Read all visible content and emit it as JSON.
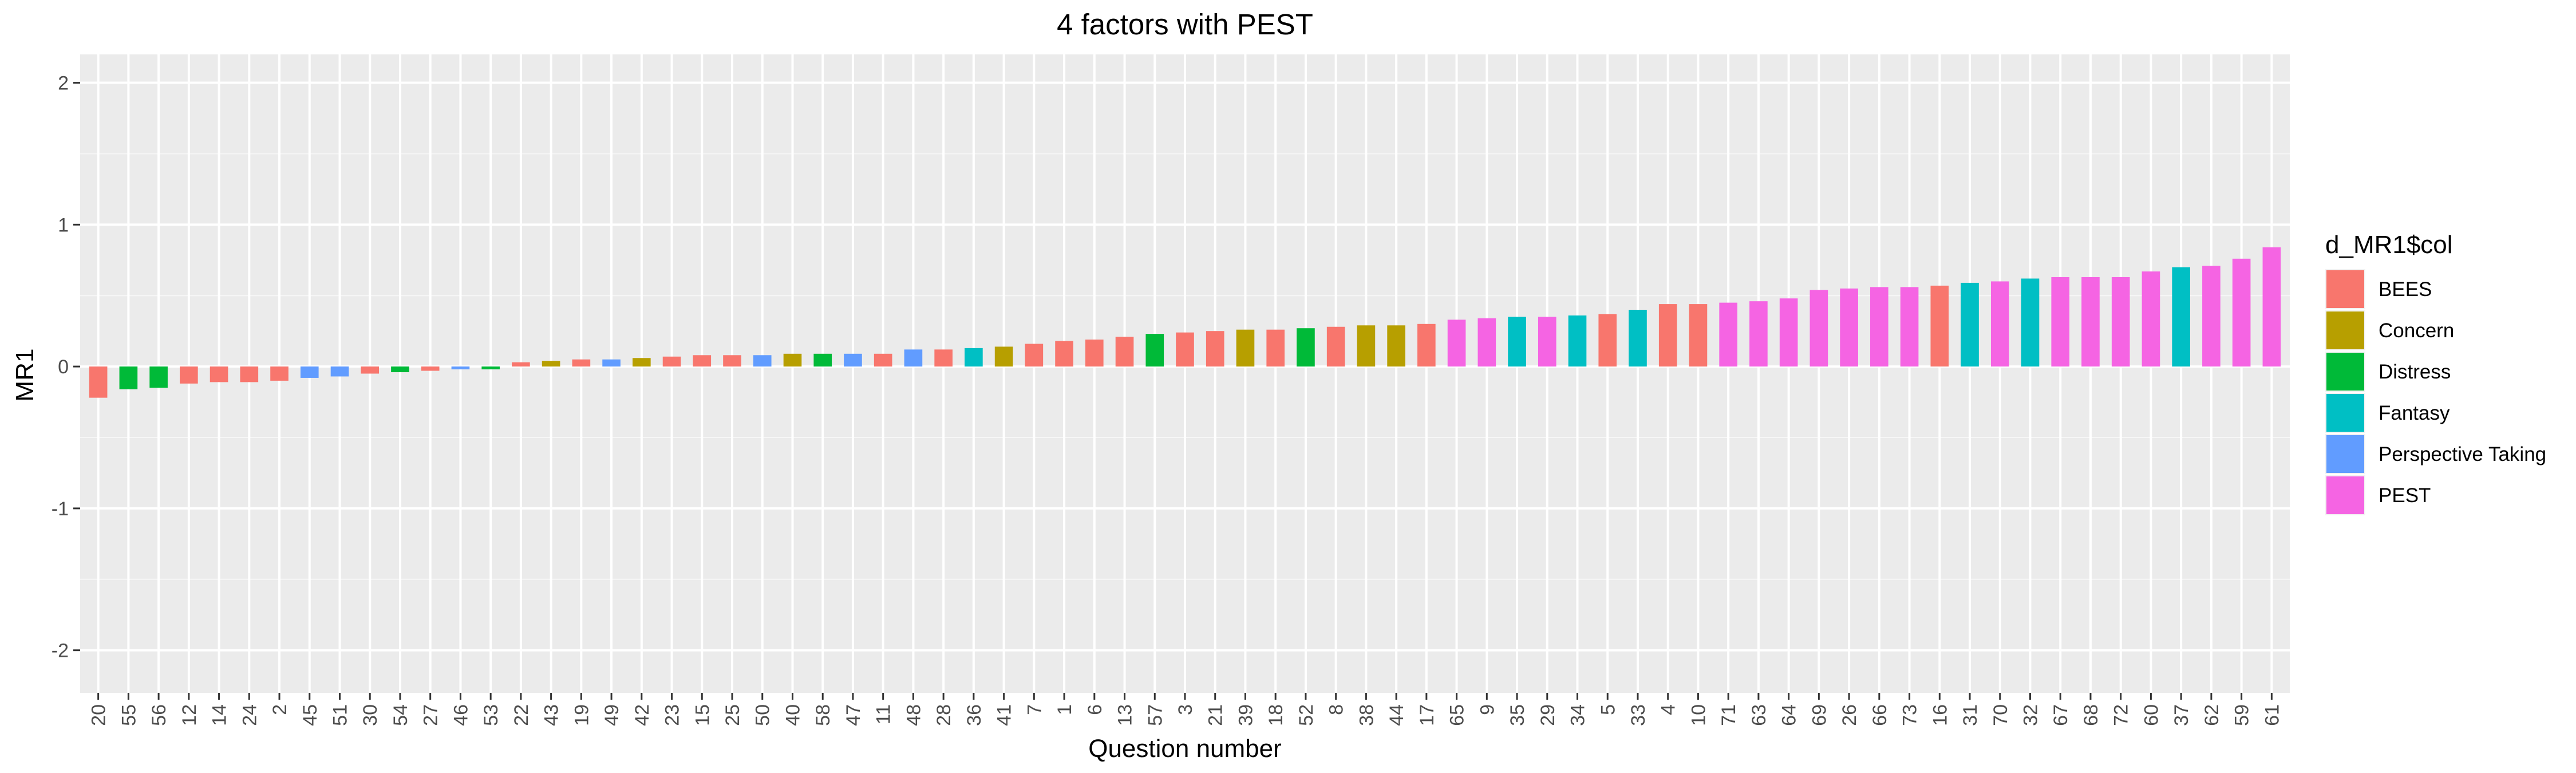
{
  "chart_data": {
    "type": "bar",
    "title": "4 factors with PEST",
    "xlabel": "Question number",
    "ylabel": "MR1",
    "ylim": [
      -2.3,
      2.2
    ],
    "yticks": [
      -2,
      -1,
      0,
      1,
      2
    ],
    "grid": true,
    "legend": {
      "title": "d_MR1$col",
      "placement": "right",
      "entries": [
        {
          "name": "BEES",
          "color": "#F8766D"
        },
        {
          "name": "Concern",
          "color": "#B79F00"
        },
        {
          "name": "Distress",
          "color": "#00BA38"
        },
        {
          "name": "Fantasy",
          "color": "#00BFC4"
        },
        {
          "name": "Perspective Taking",
          "color": "#619CFF"
        },
        {
          "name": "PEST",
          "color": "#F564E3"
        }
      ]
    },
    "categories": [
      "20",
      "55",
      "56",
      "12",
      "14",
      "24",
      "2",
      "45",
      "51",
      "30",
      "54",
      "27",
      "46",
      "53",
      "22",
      "43",
      "19",
      "49",
      "42",
      "23",
      "15",
      "25",
      "50",
      "40",
      "58",
      "47",
      "11",
      "48",
      "28",
      "36",
      "41",
      "7",
      "1",
      "6",
      "13",
      "57",
      "3",
      "21",
      "39",
      "18",
      "52",
      "8",
      "38",
      "44",
      "17",
      "65",
      "9",
      "35",
      "29",
      "34",
      "5",
      "33",
      "4",
      "10",
      "71",
      "63",
      "64",
      "69",
      "26",
      "66",
      "73",
      "16",
      "31",
      "70",
      "32",
      "67",
      "68",
      "72",
      "60",
      "37",
      "62",
      "59",
      "61"
    ],
    "groups": [
      "BEES",
      "Distress",
      "Distress",
      "BEES",
      "BEES",
      "BEES",
      "BEES",
      "Perspective Taking",
      "Perspective Taking",
      "BEES",
      "Distress",
      "BEES",
      "Perspective Taking",
      "Distress",
      "BEES",
      "Concern",
      "BEES",
      "Perspective Taking",
      "Concern",
      "BEES",
      "BEES",
      "BEES",
      "Perspective Taking",
      "Concern",
      "Distress",
      "Perspective Taking",
      "BEES",
      "Perspective Taking",
      "BEES",
      "Fantasy",
      "Concern",
      "BEES",
      "BEES",
      "BEES",
      "BEES",
      "Distress",
      "BEES",
      "BEES",
      "Concern",
      "BEES",
      "Distress",
      "BEES",
      "Concern",
      "Concern",
      "BEES",
      "PEST",
      "PEST",
      "Fantasy",
      "PEST",
      "Fantasy",
      "BEES",
      "Fantasy",
      "BEES",
      "BEES",
      "PEST",
      "PEST",
      "PEST",
      "PEST",
      "PEST",
      "PEST",
      "PEST",
      "BEES",
      "Fantasy",
      "PEST",
      "Fantasy",
      "PEST",
      "PEST",
      "PEST",
      "PEST",
      "Fantasy",
      "PEST",
      "PEST",
      "PEST"
    ],
    "values": [
      -0.22,
      -0.16,
      -0.15,
      -0.12,
      -0.11,
      -0.11,
      -0.1,
      -0.08,
      -0.07,
      -0.05,
      -0.04,
      -0.03,
      -0.02,
      -0.02,
      0.03,
      0.04,
      0.05,
      0.05,
      0.06,
      0.07,
      0.08,
      0.08,
      0.08,
      0.09,
      0.09,
      0.09,
      0.09,
      0.12,
      0.12,
      0.13,
      0.14,
      0.16,
      0.18,
      0.19,
      0.21,
      0.23,
      0.24,
      0.25,
      0.26,
      0.26,
      0.27,
      0.28,
      0.29,
      0.29,
      0.3,
      0.33,
      0.34,
      0.35,
      0.35,
      0.36,
      0.37,
      0.4,
      0.44,
      0.44,
      0.45,
      0.46,
      0.48,
      0.54,
      0.55,
      0.56,
      0.56,
      0.57,
      0.59,
      0.6,
      0.62,
      0.63,
      0.63,
      0.63,
      0.67,
      0.7,
      0.71,
      0.76,
      0.84
    ]
  }
}
